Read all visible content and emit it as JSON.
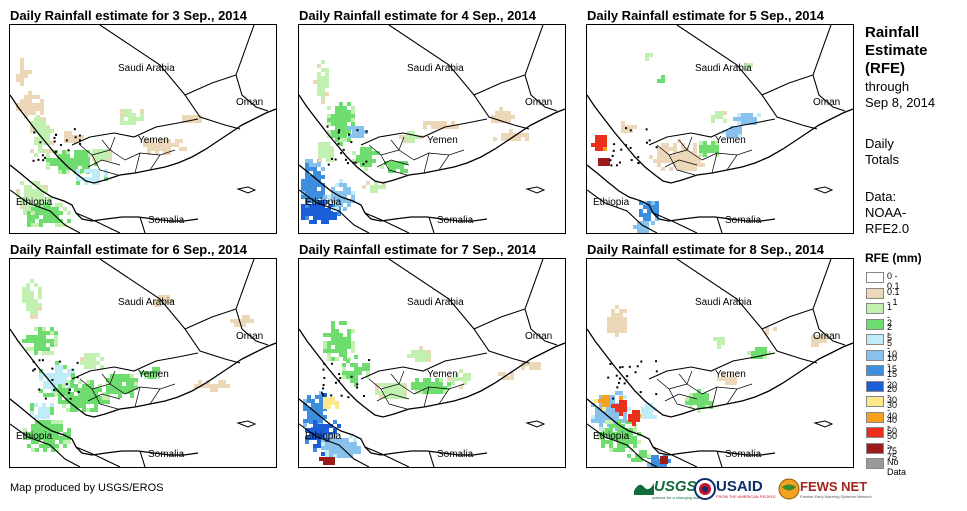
{
  "panels": [
    {
      "title": "Daily Rainfall estimate for 3 Sep., 2014",
      "day": 0
    },
    {
      "title": "Daily Rainfall estimate for 4 Sep., 2014",
      "day": 1
    },
    {
      "title": "Daily Rainfall estimate for 5 Sep., 2014",
      "day": 2
    },
    {
      "title": "Daily Rainfall estimate for 6 Sep., 2014",
      "day": 3
    },
    {
      "title": "Daily Rainfall estimate for 7 Sep., 2014",
      "day": 4
    },
    {
      "title": "Daily Rainfall estimate for 8 Sep., 2014",
      "day": 5
    }
  ],
  "map_labels": {
    "saudi": "Saudi Arabia",
    "oman": "Oman",
    "yemen": "Yemen",
    "ethiopia": "Ethiopia",
    "somalia": "Somalia"
  },
  "sidebar": {
    "title1": "Rainfall",
    "title2": "Estimate",
    "title3": "(RFE)",
    "through": "through",
    "date": "Sep 8, 2014",
    "daily": "Daily",
    "totals": "Totals",
    "data_label": "Data:",
    "data_src1": "NOAA-",
    "data_src2": "RFE2.0",
    "legend_title": "RFE (mm)"
  },
  "legend": [
    {
      "label": "0 - 0.1",
      "color": "#ffffff"
    },
    {
      "label": "0.1 - 1",
      "color": "#ecd8b8"
    },
    {
      "label": "1 - 2",
      "color": "#c2f0b0"
    },
    {
      "label": "2 - 5",
      "color": "#6edc6e"
    },
    {
      "label": "5 - 10",
      "color": "#c0ecf8"
    },
    {
      "label": "10 - 15",
      "color": "#88c2ec"
    },
    {
      "label": "15 - 20",
      "color": "#3e8ee0"
    },
    {
      "label": "20 - 30",
      "color": "#1c5ed8"
    },
    {
      "label": "30 - 40",
      "color": "#fbe88c"
    },
    {
      "label": "40 - 50",
      "color": "#f5a020"
    },
    {
      "label": "50 - 75",
      "color": "#e8301c"
    },
    {
      "label": "> 75",
      "color": "#9c1c1c"
    },
    {
      "label": "No Data",
      "color": "#9a9a9a"
    }
  ],
  "credit": "Map produced by USGS/EROS",
  "logos": {
    "usgs": "USGS",
    "usgs_tag": "science for a changing world",
    "usaid": "USAID",
    "usaid_tag": "FROM THE AMERICAN PEOPLE",
    "fews": "FEWS NET",
    "fews_tag": "Famine Early Warning Systems Network"
  }
}
